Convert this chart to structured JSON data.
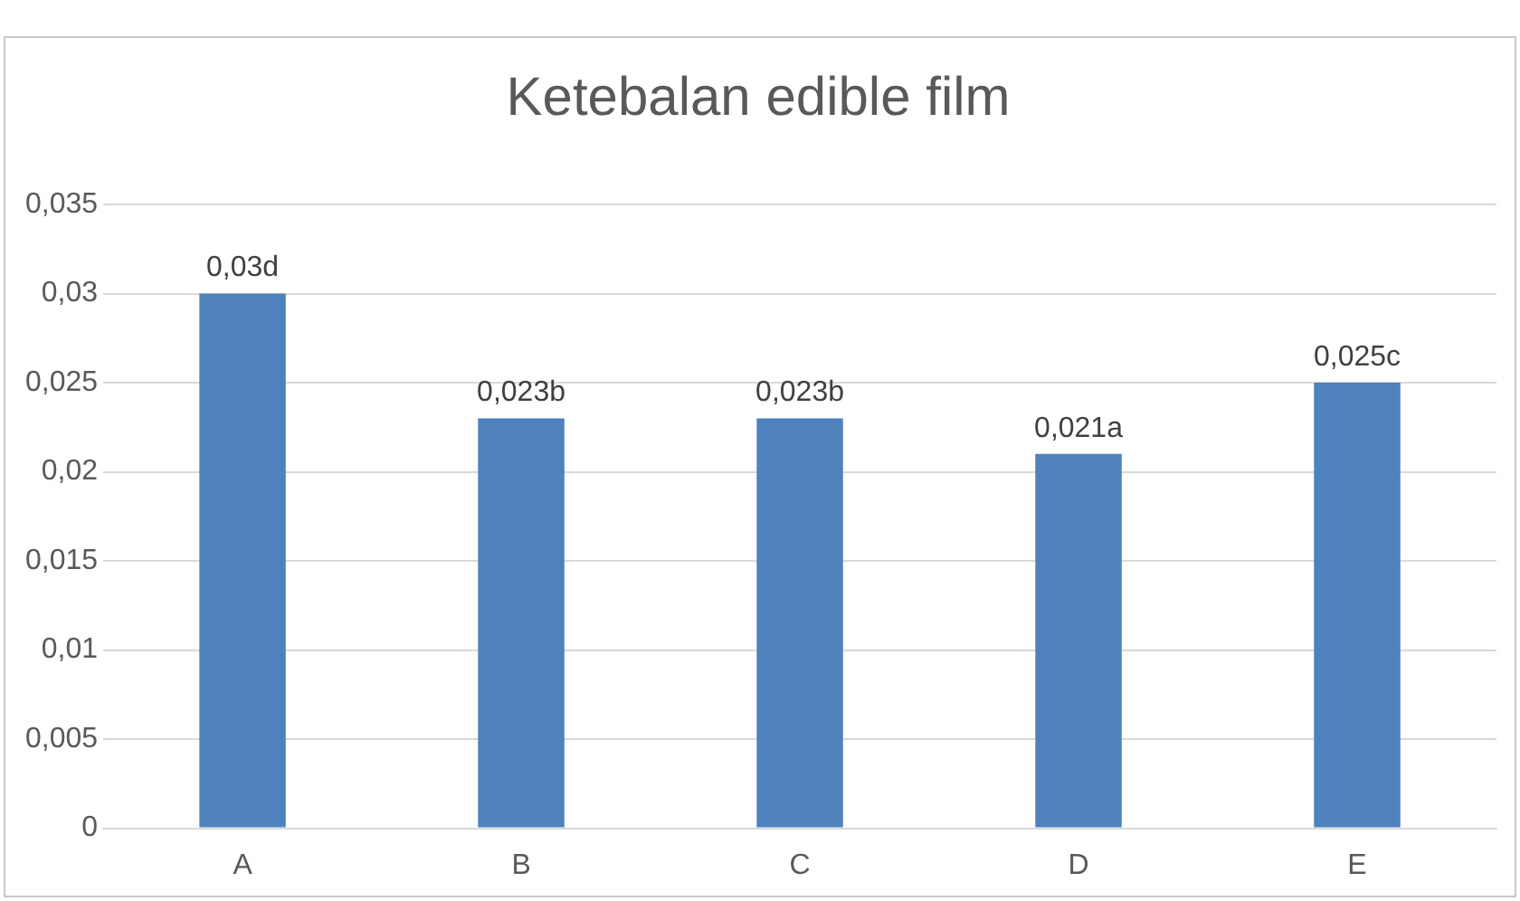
{
  "chart_data": {
    "type": "bar",
    "title": "Ketebalan edible film",
    "categories": [
      "A",
      "B",
      "C",
      "D",
      "E"
    ],
    "values": [
      0.03,
      0.023,
      0.023,
      0.021,
      0.025
    ],
    "value_labels": [
      "0,03d",
      "0,023b",
      "0,023b",
      "0,021a",
      "0,025c"
    ],
    "color": "#4f81bd",
    "ylim": [
      0,
      0.035
    ],
    "yticks": [
      {
        "value": 0,
        "label": "0"
      },
      {
        "value": 0.005,
        "label": "0,005"
      },
      {
        "value": 0.01,
        "label": "0,01"
      },
      {
        "value": 0.015,
        "label": "0,015"
      },
      {
        "value": 0.02,
        "label": "0,02"
      },
      {
        "value": 0.025,
        "label": "0,025"
      },
      {
        "value": 0.03,
        "label": "0,03"
      },
      {
        "value": 0.035,
        "label": "0,035"
      }
    ],
    "grid": "y",
    "legend": false
  }
}
